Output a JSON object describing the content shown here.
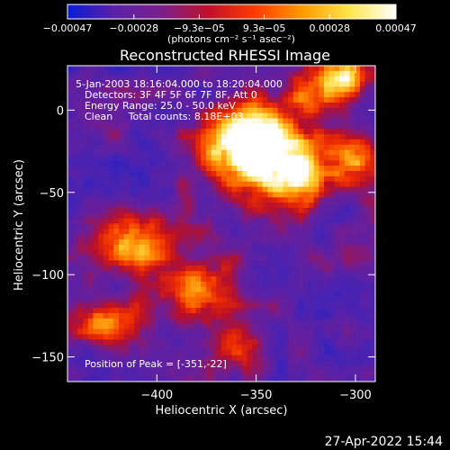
{
  "chart_data": {
    "type": "heatmap",
    "title": "Reconstructed RHESSI Image",
    "xlabel": "Heliocentric X (arcsec)",
    "ylabel": "Heliocentric Y (arcsec)",
    "xlim": [
      -445,
      -290
    ],
    "ylim": [
      -165,
      27
    ],
    "x_ticks": [
      -400,
      -350,
      -300
    ],
    "x_tick_labels": [
      "−400",
      "−350",
      "−300"
    ],
    "y_ticks": [
      0,
      -50,
      -100,
      -150
    ],
    "y_tick_labels": [
      "0",
      "−50",
      "−100",
      "−150"
    ],
    "colormap": "RHESSI blue-purple-red-yellow-white",
    "colorbar": {
      "range": [
        -0.00047,
        0.00047
      ],
      "ticks": [
        -0.00047,
        -0.00028,
        -9.3e-05,
        9.3e-05,
        0.00028,
        0.00047
      ],
      "tick_labels": [
        "−0.00047",
        "−0.00028",
        "−9.3e−05",
        "9.3e−05",
        "0.00028",
        "0.00047"
      ],
      "units_label": "(photons cm⁻² s⁻¹ asec⁻²)",
      "colors": [
        "#0a1bd6",
        "#5b21a8",
        "#7a1f8c",
        "#c0102a",
        "#ff3b00",
        "#ff9a00",
        "#ffe64a",
        "#ffffff"
      ]
    },
    "annotations": {
      "time_range": "5-Jan-2003 18:16:04.000 to 18:20:04.000",
      "detectors": "Detectors: 3F 4F 5F 6F 7F 8F, Att 0",
      "energy_range": "Energy Range: 25.0 - 50.0 keV",
      "method_counts": "Clean     Total counts: 8.18E+03",
      "peak": "Position of Peak = [-351,-22]"
    },
    "peak": [
      -351,
      -22
    ],
    "grid": false
  },
  "footer": {
    "timestamp": "27-Apr-2022 15:44"
  }
}
